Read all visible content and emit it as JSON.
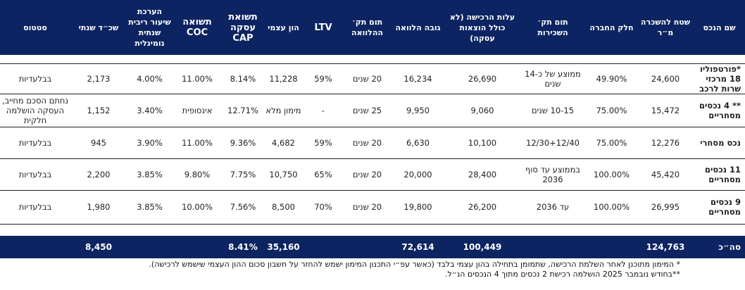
{
  "headers": [
    "שם הנכס",
    "שטח להשכרה מ״ר",
    "חלק החברה",
    "תום תק׳ השכירות",
    "עלות הרכישה (לא כולל הוצאות עסקה)",
    "גובה הלוואה",
    "תום תק׳ ההלוואה",
    "LTV",
    "הון עצמי",
    "תשואת עסקה CAP",
    "תשואה COC",
    "הערכת שיעור ריבית שנתית נומינלית",
    "שכ״ד שנתי",
    "סטטוס"
  ],
  "rows": [
    [
      "*פורטפוליו 18 מרכזי שרות לרכב",
      "24,600",
      "49.90%",
      "ממוצע של כ-14 שנים",
      "26,690",
      "16,234",
      "20 שנים",
      "59%",
      "11,228",
      "8.14%",
      "11.00%",
      "4.00%",
      "2,173",
      "בבלעדיות"
    ],
    [
      "** 4 נכסים מסחריים",
      "15,472",
      "75.00%",
      "10-15 שנים",
      "9,060",
      "9,950",
      "25 שנים",
      "-",
      "מימון מלא",
      "12.71%",
      "אינסופית",
      "3.40%",
      "1,152",
      "נחתם הסכם מחייב, העסקה הושלמה חלקית"
    ],
    [
      "נכס מסחרי",
      "12,276",
      "75.00%",
      "12/30+12/40",
      "10,100",
      "6,630",
      "20 שנים",
      "59%",
      "4,682",
      "9.36%",
      "11.00%",
      "3.90%",
      "945",
      "בבלעדיות"
    ],
    [
      "11 נכסים מסחריים",
      "45,420",
      "100.00%",
      "בממוצע עד סוף 2036",
      "28,400",
      "20,000",
      "20 שנים",
      "65%",
      "10,750",
      "7.75%",
      "9.80%",
      "3.85%",
      "2,200",
      "בבלעדיות"
    ],
    [
      "9 נכסים מסחריים",
      "26,995",
      "100.00%",
      "עד 2036",
      "26,200",
      "19,800",
      "20 שנים",
      "70%",
      "8,500",
      "7.56%",
      "10.00%",
      "3.85%",
      "1,980",
      "בבלעדיות"
    ]
  ],
  "total": [
    "סה״כ",
    "124,763",
    "",
    "",
    "100,449",
    "72,614",
    "",
    "",
    "35,160",
    "8.41%",
    "",
    "",
    "8,450",
    ""
  ],
  "notes": [
    "* המימון מתוכנן לאחר השלמת הרכישה, שתמומן בתחילה בהון עצמי בלבד (כאשר עפ״י התכנון המימון ישמש להחזר על חשבון סכום ההון העצמי שישמש לרכישה).",
    "**בחודש נובמבר 2025 הושלמה רכישת 2 נכסים מתוך 4 הנכסים הנ״ל."
  ]
}
